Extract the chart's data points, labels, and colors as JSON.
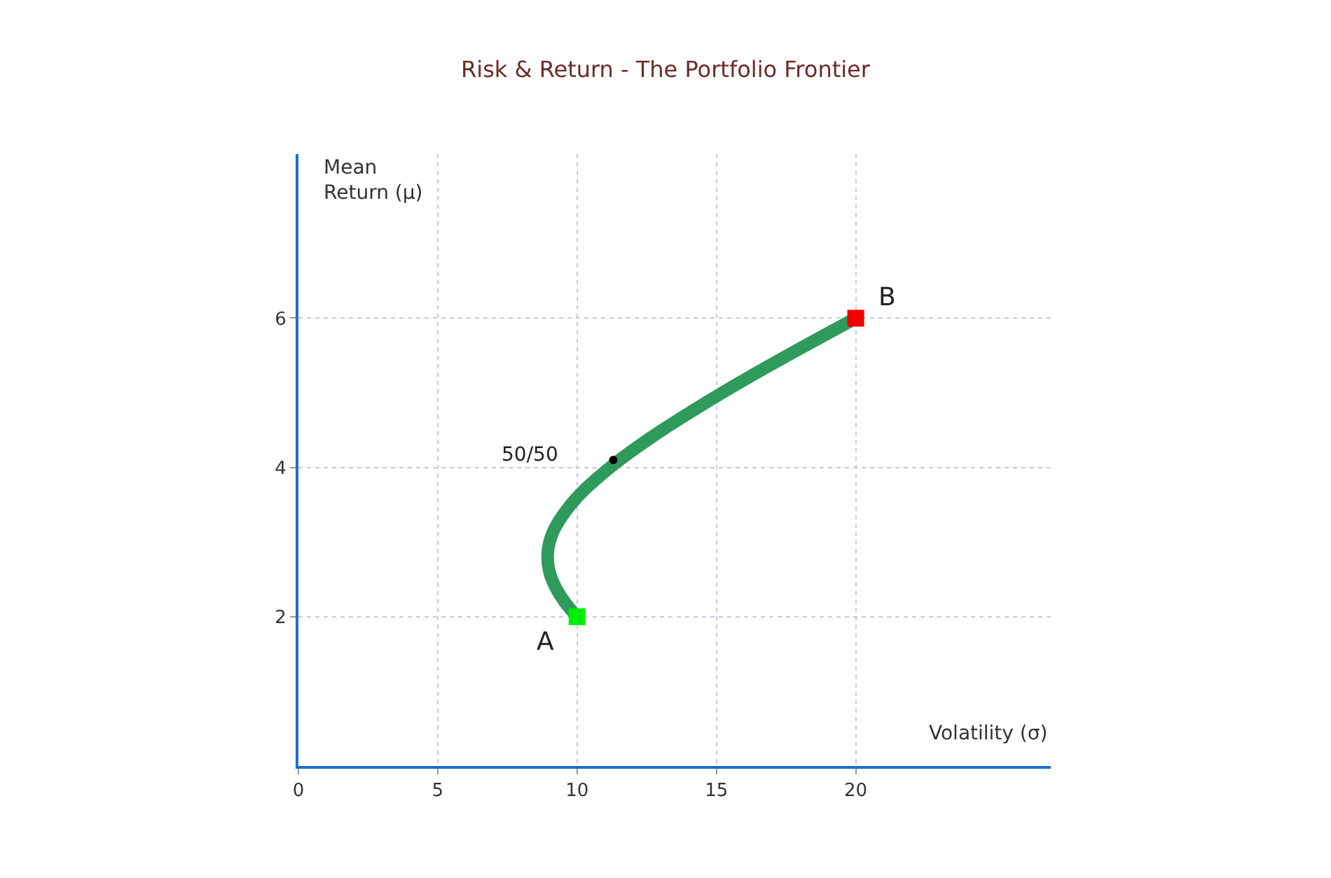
{
  "chart_data": {
    "type": "line",
    "title": "Risk & Return - The Portfolio Frontier",
    "xlabel": "Volatility (σ)",
    "ylabel": "Mean\nReturn (μ)",
    "xlim": [
      0,
      27
    ],
    "ylim": [
      0,
      8.2
    ],
    "xticks": [
      0,
      5,
      10,
      15,
      20
    ],
    "yticks": [
      2,
      4,
      6
    ],
    "grid": true,
    "line_style": "solid",
    "series": [
      {
        "color": "#2e9a5c",
        "marker": "none",
        "x": [
          10,
          9.55,
          9.22,
          9.01,
          8.94,
          9.01,
          9.22,
          10,
          11.18,
          12.65,
          14.32,
          16.12,
          18.03,
          20
        ],
        "values": [
          2,
          2.2,
          2.4,
          2.6,
          2.8,
          3.0,
          3.2,
          3.6,
          4.0,
          4.4,
          4.8,
          5.2,
          5.6,
          6
        ]
      },
      {
        "type": "scatter",
        "color": "#00ee00",
        "marker": "square",
        "x": [
          10
        ],
        "values": [
          2
        ]
      },
      {
        "type": "scatter",
        "color": "#ee0000",
        "marker": "square",
        "x": [
          20
        ],
        "values": [
          6
        ]
      },
      {
        "type": "scatter",
        "color": "#000000",
        "marker": "circle",
        "x": [
          11.3
        ],
        "values": [
          4.1
        ]
      }
    ],
    "annotations": [
      {
        "text": "A",
        "x": 10,
        "y": 2
      },
      {
        "text": "B",
        "x": 20,
        "y": 6
      },
      {
        "text": "50/50",
        "x": 11.3,
        "y": 4.1
      }
    ]
  }
}
